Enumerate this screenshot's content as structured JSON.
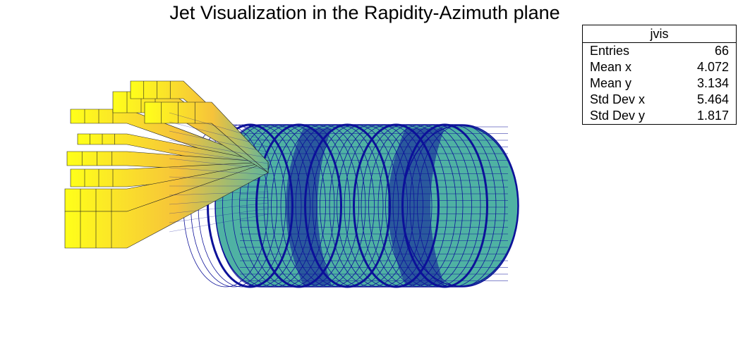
{
  "chart_data": {
    "type": "lego-3d-cylindrical",
    "title": "Jet Visualization in the Rapidity-Azimuth plane",
    "histogram_name": "jvis",
    "stats": [
      {
        "label": "Entries",
        "value": "66"
      },
      {
        "label": "Mean x",
        "value": "4.072"
      },
      {
        "label": "Mean y",
        "value": "3.134"
      },
      {
        "label": "Std Dev x",
        "value": "5.464"
      },
      {
        "label": "Std Dev y",
        "value": "1.817"
      }
    ],
    "colors": {
      "cylinder_face": "#4fb2a3",
      "cylinder_line": "#0d1199",
      "bar_low": "#7fbf7a",
      "bar_mid": "#f5c52a",
      "bar_high": "#ffff00",
      "bar_edge": "#222222"
    }
  }
}
